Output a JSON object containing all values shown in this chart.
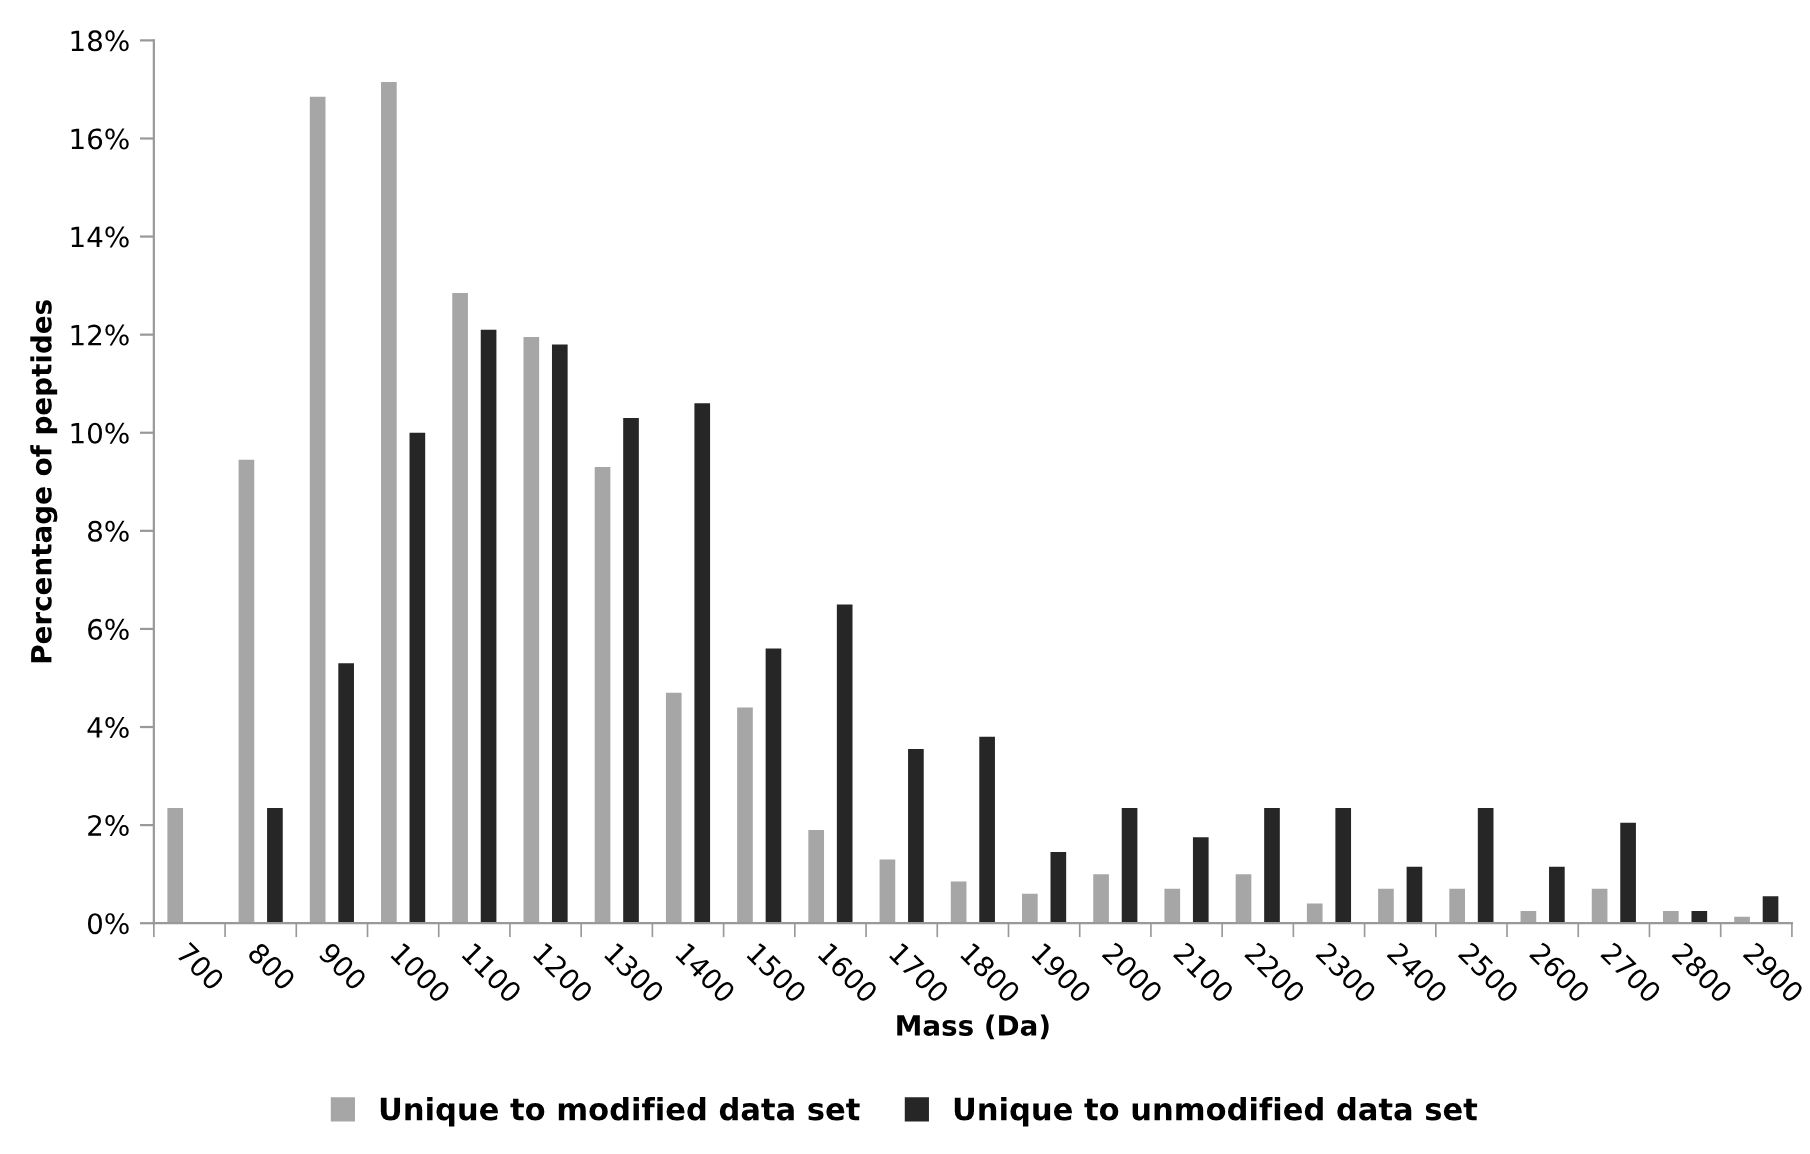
{
  "chart_data": {
    "type": "bar",
    "xlabel": "Mass (Da)",
    "ylabel": "Percentage of peptides",
    "categories": [
      "700",
      "800",
      "900",
      "1000",
      "1100",
      "1200",
      "1300",
      "1400",
      "1500",
      "1600",
      "1700",
      "1800",
      "1900",
      "2000",
      "2100",
      "2200",
      "2300",
      "2400",
      "2500",
      "2600",
      "2700",
      "2800",
      "2900"
    ],
    "series": [
      {
        "name": "Unique to modified data set",
        "color": "#a6a6a6",
        "values": [
          2.35,
          9.45,
          16.85,
          17.15,
          12.85,
          11.95,
          9.3,
          4.7,
          4.4,
          1.9,
          1.3,
          0.85,
          0.6,
          1.0,
          0.7,
          1.0,
          0.4,
          0.7,
          0.7,
          0.25,
          0.7,
          0.25,
          0.13
        ]
      },
      {
        "name": "Unique to unmodified data set",
        "color": "#262626",
        "values": [
          0,
          2.35,
          5.3,
          10.0,
          12.1,
          11.8,
          10.3,
          10.6,
          5.6,
          6.5,
          3.55,
          3.8,
          1.45,
          2.35,
          1.75,
          2.35,
          2.35,
          1.15,
          2.35,
          1.15,
          2.05,
          0.25,
          0.55
        ]
      }
    ],
    "ylim": [
      0,
      18
    ],
    "yticks": [
      {
        "value": 0,
        "label": "0%"
      },
      {
        "value": 2,
        "label": "2%"
      },
      {
        "value": 4,
        "label": "4%"
      },
      {
        "value": 6,
        "label": "6%"
      },
      {
        "value": 8,
        "label": "8%"
      },
      {
        "value": 10,
        "label": "10%"
      },
      {
        "value": 12,
        "label": "12%"
      },
      {
        "value": 14,
        "label": "14%"
      },
      {
        "value": 16,
        "label": "16%"
      },
      {
        "value": 18,
        "label": "18%"
      }
    ],
    "grid": false,
    "legend": "bottom"
  }
}
